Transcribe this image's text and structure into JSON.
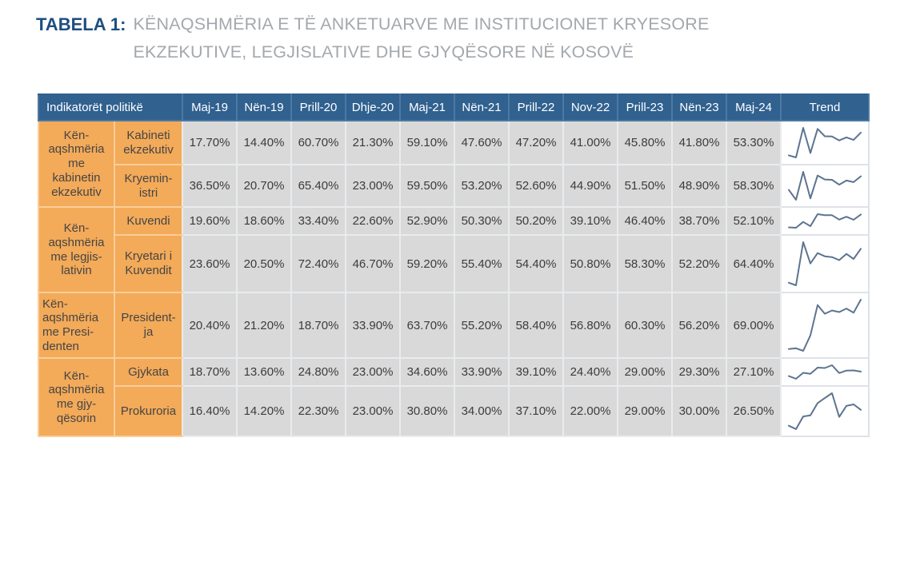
{
  "title": {
    "label": "TABELA 1:",
    "text": "KËNAQSHMËRIA E TË ANKETUARVE ME INSTITUCIONET KRYESORE EKZEKUTIVE, LEGJISLATIVE DHE GJYQËSORE NË KOSOVË"
  },
  "colors": {
    "header_bg": "#30618F",
    "header_divider": "#4E79A1",
    "label_bg": "#F3AA59",
    "label_border": "#F9CE9A",
    "cell_bg": "#D9D9D9",
    "cell_border": "#E9ECEF",
    "sparkline": "#5D7490",
    "title_accent": "#1D4E7F",
    "title_gray": "#A4A8AC",
    "outer_border": "#C3D6E7"
  },
  "table": {
    "header_first": "Indikatorët politikë",
    "trend_header": "Trend",
    "columns": [
      "Maj-19",
      "Nën-19",
      "Prill-20",
      "Dhje-20",
      "Maj-21",
      "Nën-21",
      "Prill-22",
      "Nov-22",
      "Prill-23",
      "Nën-23",
      "Maj-24"
    ],
    "value_suffix": "%",
    "groups": [
      {
        "label": "Kën-\naqshmëria\nme\nkabinetin\nekzekutiv",
        "rows": [
          {
            "label": "Kabineti\nekzekutiv",
            "values": [
              17.7,
              14.4,
              60.7,
              21.3,
              59.1,
              47.6,
              47.2,
              41.0,
              45.8,
              41.8,
              53.3
            ]
          },
          {
            "label": "Kryemin-\nistri",
            "values": [
              36.5,
              20.7,
              65.4,
              23.0,
              59.5,
              53.2,
              52.6,
              44.9,
              51.5,
              48.9,
              58.3
            ]
          }
        ]
      },
      {
        "label": "Kën-\naqshmëria\nme legjis-\nlativin",
        "rows": [
          {
            "label": "Kuvendi",
            "values": [
              19.6,
              18.6,
              33.4,
              22.6,
              52.9,
              50.3,
              50.2,
              39.1,
              46.4,
              38.7,
              52.1
            ]
          },
          {
            "label": "Kryetari i\nKuvendit",
            "values": [
              23.6,
              20.5,
              72.4,
              46.7,
              59.2,
              55.4,
              54.4,
              50.8,
              58.3,
              52.2,
              64.4
            ]
          }
        ]
      },
      {
        "label": "Kën-\naqshmëria\nme Presi-\ndenten",
        "rows": [
          {
            "label": "President-\nja",
            "values": [
              20.4,
              21.2,
              18.7,
              33.9,
              63.7,
              55.2,
              58.4,
              56.8,
              60.3,
              56.2,
              69.0
            ]
          }
        ]
      },
      {
        "label": "Kën-\naqshmëria\nme gjy-\nqësorin",
        "rows": [
          {
            "label": "Gjykata",
            "values": [
              18.7,
              13.6,
              24.8,
              23.0,
              34.6,
              33.9,
              39.1,
              24.4,
              29.0,
              29.3,
              27.1
            ]
          },
          {
            "label": "Prokuroria",
            "values": [
              16.4,
              14.2,
              22.3,
              23.0,
              30.8,
              34.0,
              37.1,
              22.0,
              29.0,
              30.0,
              26.5
            ]
          }
        ]
      }
    ]
  },
  "chart_data": {
    "type": "table",
    "title": "TABELA 1: KËNAQSHMËRIA E TË ANKETUARVE ME INSTITUCIONET KRYESORE EKZEKUTIVE, LEGJISLATIVE DHE GJYQËSORE NË KOSOVË",
    "categories": [
      "Maj-19",
      "Nën-19",
      "Prill-20",
      "Dhje-20",
      "Maj-21",
      "Nën-21",
      "Prill-22",
      "Nov-22",
      "Prill-23",
      "Nën-23",
      "Maj-24"
    ],
    "unit": "percent",
    "trend_column": "per-row sparkline (line chart) of the 11 values",
    "series": [
      {
        "name": "Kabineti ekzekutiv",
        "group": "Kënaqshmëria me kabinetin ekzekutiv",
        "values": [
          17.7,
          14.4,
          60.7,
          21.3,
          59.1,
          47.6,
          47.2,
          41.0,
          45.8,
          41.8,
          53.3
        ]
      },
      {
        "name": "Kryeministri",
        "group": "Kënaqshmëria me kabinetin ekzekutiv",
        "values": [
          36.5,
          20.7,
          65.4,
          23.0,
          59.5,
          53.2,
          52.6,
          44.9,
          51.5,
          48.9,
          58.3
        ]
      },
      {
        "name": "Kuvendi",
        "group": "Kënaqshmëria me legjislativin",
        "values": [
          19.6,
          18.6,
          33.4,
          22.6,
          52.9,
          50.3,
          50.2,
          39.1,
          46.4,
          38.7,
          52.1
        ]
      },
      {
        "name": "Kryetari i Kuvendit",
        "group": "Kënaqshmëria me legjislativin",
        "values": [
          23.6,
          20.5,
          72.4,
          46.7,
          59.2,
          55.4,
          54.4,
          50.8,
          58.3,
          52.2,
          64.4
        ]
      },
      {
        "name": "Presidentja",
        "group": "Kënaqshmëria me Presidenten",
        "values": [
          20.4,
          21.2,
          18.7,
          33.9,
          63.7,
          55.2,
          58.4,
          56.8,
          60.3,
          56.2,
          69.0
        ]
      },
      {
        "name": "Gjykata",
        "group": "Kënaqshmëria me gjyqësorin",
        "values": [
          18.7,
          13.6,
          24.8,
          23.0,
          34.6,
          33.9,
          39.1,
          24.4,
          29.0,
          29.3,
          27.1
        ]
      },
      {
        "name": "Prokuroria",
        "group": "Kënaqshmëria me gjyqësorin",
        "values": [
          16.4,
          14.2,
          22.3,
          23.0,
          30.8,
          34.0,
          37.1,
          22.0,
          29.0,
          30.0,
          26.5
        ]
      }
    ]
  }
}
